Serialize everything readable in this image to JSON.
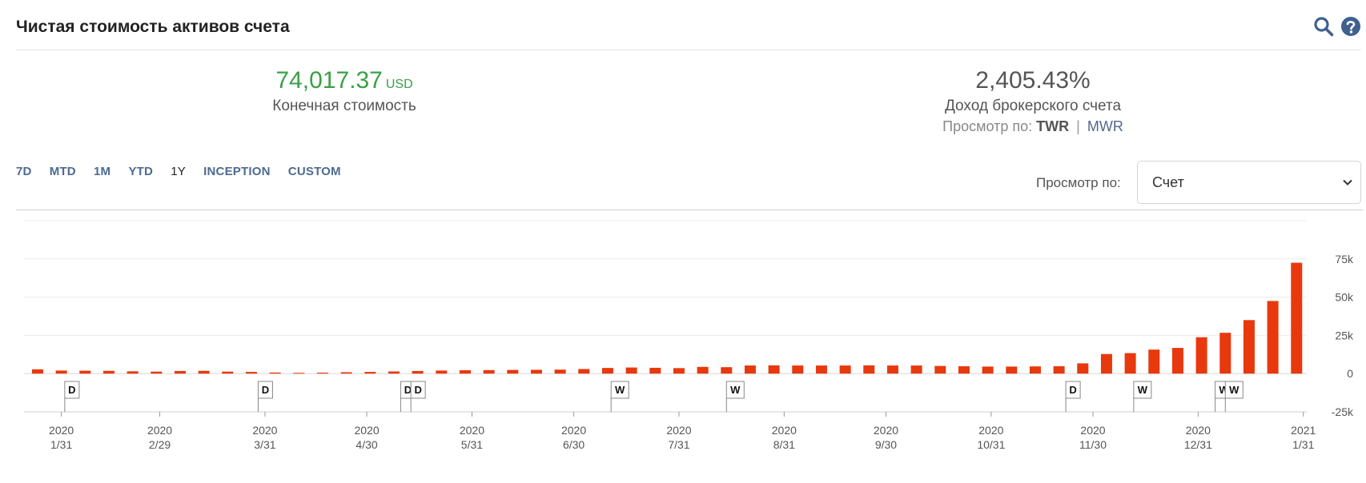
{
  "header": {
    "title": "Чистая стоимость активов счета",
    "search_icon": "search-icon",
    "help_icon": "help-icon",
    "icon_color": "#3f5f8f"
  },
  "summary": {
    "ending_value": "74,017.37",
    "currency": "USD",
    "ending_label": "Конечная стоимость",
    "return_value": "2,405.43%",
    "return_label": "Доход брокерского счета",
    "view_label": "Просмотр по:",
    "twr": "TWR",
    "separator": "|",
    "mwr": "MWR"
  },
  "ranges": {
    "items": [
      "7D",
      "MTD",
      "1M",
      "YTD",
      "1Y",
      "INCEPTION",
      "CUSTOM"
    ],
    "active": "1Y"
  },
  "view_by": {
    "label": "Просмотр по:",
    "selected": "Счет"
  },
  "chart_data": {
    "type": "bar",
    "color": "#e8380d",
    "ylim": [
      -25000,
      100000
    ],
    "y_ticks": [
      -25000,
      0,
      25000,
      50000,
      75000
    ],
    "y_tick_labels": [
      "-25k",
      "0",
      "25k",
      "50k",
      "75k"
    ],
    "x_range": [
      "2020-01-20",
      "2021-02-01"
    ],
    "x_ticks": [
      {
        "date": "2020-01-31",
        "year": "2020",
        "day": "1/31"
      },
      {
        "date": "2020-02-29",
        "year": "2020",
        "day": "2/29"
      },
      {
        "date": "2020-03-31",
        "year": "2020",
        "day": "3/31"
      },
      {
        "date": "2020-04-30",
        "year": "2020",
        "day": "4/30"
      },
      {
        "date": "2020-05-31",
        "year": "2020",
        "day": "5/31"
      },
      {
        "date": "2020-06-30",
        "year": "2020",
        "day": "6/30"
      },
      {
        "date": "2020-07-31",
        "year": "2020",
        "day": "7/31"
      },
      {
        "date": "2020-08-31",
        "year": "2020",
        "day": "8/31"
      },
      {
        "date": "2020-09-30",
        "year": "2020",
        "day": "9/30"
      },
      {
        "date": "2020-10-31",
        "year": "2020",
        "day": "10/31"
      },
      {
        "date": "2020-11-30",
        "year": "2020",
        "day": "11/30"
      },
      {
        "date": "2020-12-31",
        "year": "2020",
        "day": "12/31"
      },
      {
        "date": "2021-01-31",
        "year": "2021",
        "day": "1/31"
      }
    ],
    "bars": [
      {
        "date": "2020-01-24",
        "value": 2800
      },
      {
        "date": "2020-01-31",
        "value": 2000
      },
      {
        "date": "2020-02-07",
        "value": 1900
      },
      {
        "date": "2020-02-14",
        "value": 1800
      },
      {
        "date": "2020-02-21",
        "value": 1500
      },
      {
        "date": "2020-02-28",
        "value": 1300
      },
      {
        "date": "2020-03-06",
        "value": 1700
      },
      {
        "date": "2020-03-13",
        "value": 1800
      },
      {
        "date": "2020-03-20",
        "value": 1300
      },
      {
        "date": "2020-03-27",
        "value": 1100
      },
      {
        "date": "2020-04-03",
        "value": 700
      },
      {
        "date": "2020-04-10",
        "value": 500
      },
      {
        "date": "2020-04-17",
        "value": 600
      },
      {
        "date": "2020-04-24",
        "value": 900
      },
      {
        "date": "2020-05-01",
        "value": 1100
      },
      {
        "date": "2020-05-08",
        "value": 1400
      },
      {
        "date": "2020-05-15",
        "value": 1700
      },
      {
        "date": "2020-05-22",
        "value": 2000
      },
      {
        "date": "2020-05-29",
        "value": 2200
      },
      {
        "date": "2020-06-05",
        "value": 2300
      },
      {
        "date": "2020-06-12",
        "value": 2400
      },
      {
        "date": "2020-06-19",
        "value": 2500
      },
      {
        "date": "2020-06-26",
        "value": 2600
      },
      {
        "date": "2020-07-03",
        "value": 3000
      },
      {
        "date": "2020-07-10",
        "value": 3700
      },
      {
        "date": "2020-07-17",
        "value": 4000
      },
      {
        "date": "2020-07-24",
        "value": 3800
      },
      {
        "date": "2020-07-31",
        "value": 3600
      },
      {
        "date": "2020-08-07",
        "value": 4400
      },
      {
        "date": "2020-08-14",
        "value": 4200
      },
      {
        "date": "2020-08-21",
        "value": 5300
      },
      {
        "date": "2020-08-28",
        "value": 5400
      },
      {
        "date": "2020-09-04",
        "value": 5300
      },
      {
        "date": "2020-09-11",
        "value": 5300
      },
      {
        "date": "2020-09-18",
        "value": 5300
      },
      {
        "date": "2020-09-25",
        "value": 5400
      },
      {
        "date": "2020-10-02",
        "value": 5300
      },
      {
        "date": "2020-10-09",
        "value": 5300
      },
      {
        "date": "2020-10-16",
        "value": 5000
      },
      {
        "date": "2020-10-23",
        "value": 4800
      },
      {
        "date": "2020-10-30",
        "value": 4600
      },
      {
        "date": "2020-11-06",
        "value": 4600
      },
      {
        "date": "2020-11-13",
        "value": 4700
      },
      {
        "date": "2020-11-20",
        "value": 4800
      },
      {
        "date": "2020-11-27",
        "value": 6700
      },
      {
        "date": "2020-12-04",
        "value": 12800
      },
      {
        "date": "2020-12-11",
        "value": 13400
      },
      {
        "date": "2020-12-18",
        "value": 15700
      },
      {
        "date": "2020-12-25",
        "value": 16800
      },
      {
        "date": "2021-01-01",
        "value": 23800
      },
      {
        "date": "2021-01-08",
        "value": 26700
      },
      {
        "date": "2021-01-15",
        "value": 35000
      },
      {
        "date": "2021-01-22",
        "value": 47500
      },
      {
        "date": "2021-01-29",
        "value": 72500
      }
    ],
    "events": [
      {
        "date": "2020-02-01",
        "label": "D"
      },
      {
        "date": "2020-03-29",
        "label": "D"
      },
      {
        "date": "2020-05-10",
        "label": "D"
      },
      {
        "date": "2020-05-13",
        "label": "D"
      },
      {
        "date": "2020-07-11",
        "label": "W"
      },
      {
        "date": "2020-08-14",
        "label": "W"
      },
      {
        "date": "2020-11-22",
        "label": "D"
      },
      {
        "date": "2020-12-12",
        "label": "W"
      },
      {
        "date": "2021-01-05",
        "label": "W"
      },
      {
        "date": "2021-01-08",
        "label": "W"
      }
    ],
    "grid": true
  }
}
